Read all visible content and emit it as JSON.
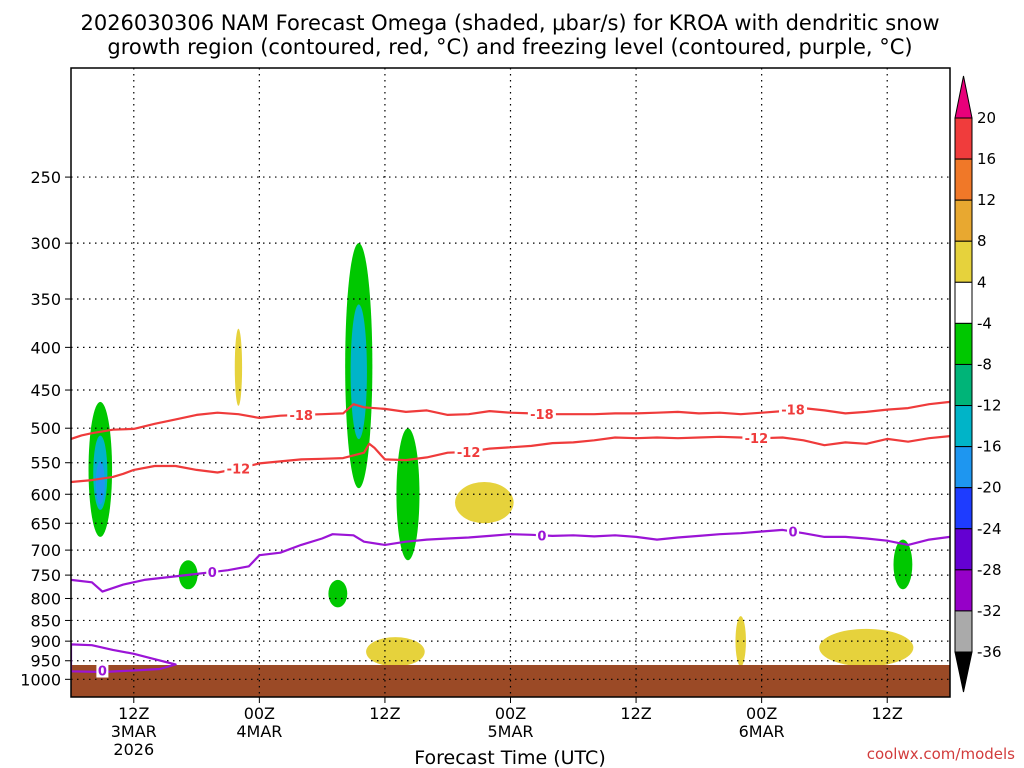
{
  "chart_data": {
    "type": "heatmap",
    "title_line1": "2026030306 NAM Forecast Omega (shaded, μbar/s) for KROA with dendritic snow",
    "title_line2": "growth region (contoured, red, °C) and freezing level (contoured, purple, °C)",
    "xlabel": "Forecast Time (UTC)",
    "ylabel": "",
    "credit": "coolwx.com/models",
    "yaxis": {
      "type": "log-pressure",
      "range_hPa": [
        1050,
        185
      ],
      "ticks": [
        "250",
        "300",
        "350",
        "400",
        "450",
        "500",
        "550",
        "600",
        "650",
        "700",
        "750",
        "800",
        "850",
        "900",
        "950",
        "1000"
      ]
    },
    "xaxis": {
      "range_hours": [
        0,
        84
      ],
      "ticks": [
        {
          "hour": 6,
          "label": "12Z",
          "sub": "3MAR",
          "sub2": "2026"
        },
        {
          "hour": 18,
          "label": "00Z",
          "sub": "4MAR",
          "sub2": ""
        },
        {
          "hour": 30,
          "label": "12Z",
          "sub": "",
          "sub2": ""
        },
        {
          "hour": 42,
          "label": "00Z",
          "sub": "5MAR",
          "sub2": ""
        },
        {
          "hour": 54,
          "label": "12Z",
          "sub": "",
          "sub2": ""
        },
        {
          "hour": 66,
          "label": "00Z",
          "sub": "6MAR",
          "sub2": ""
        },
        {
          "hour": 78,
          "label": "12Z",
          "sub": "",
          "sub2": ""
        }
      ]
    },
    "colorbar": {
      "levels": [
        "20",
        "16",
        "12",
        "8",
        "4",
        "-4",
        "-8",
        "-12",
        "-16",
        "-20",
        "-24",
        "-28",
        "-32",
        "-36"
      ],
      "colors": [
        "#e8007a",
        "#f03c3c",
        "#f07828",
        "#e8a830",
        "#e6d23c",
        "#ffffff",
        "#00c800",
        "#00b478",
        "#00b4c8",
        "#1e96f0",
        "#1e3cff",
        "#6400d2",
        "#9600c8",
        "#aaaaaa",
        "#000000"
      ]
    },
    "contours": [
      {
        "name": "-18°C isotherm",
        "color": "#ef3b3b",
        "label": "-18",
        "points": [
          [
            0,
            515
          ],
          [
            1,
            510
          ],
          [
            2,
            507
          ],
          [
            4,
            502
          ],
          [
            6,
            501
          ],
          [
            8,
            494
          ],
          [
            10,
            488
          ],
          [
            12,
            482
          ],
          [
            14,
            479
          ],
          [
            16,
            481
          ],
          [
            18,
            486
          ],
          [
            20,
            483
          ],
          [
            22,
            482
          ],
          [
            24,
            481
          ],
          [
            26,
            480
          ],
          [
            27,
            468
          ],
          [
            28,
            472
          ],
          [
            30,
            474
          ],
          [
            32,
            478
          ],
          [
            34,
            476
          ],
          [
            36,
            482
          ],
          [
            38,
            481
          ],
          [
            40,
            477
          ],
          [
            42,
            479
          ],
          [
            44,
            480
          ],
          [
            46,
            481
          ],
          [
            48,
            481
          ],
          [
            50,
            481
          ],
          [
            52,
            480
          ],
          [
            54,
            480
          ],
          [
            56,
            479
          ],
          [
            58,
            478
          ],
          [
            60,
            480
          ],
          [
            62,
            479
          ],
          [
            64,
            481
          ],
          [
            66,
            479
          ],
          [
            68,
            477
          ],
          [
            70,
            473
          ],
          [
            72,
            476
          ],
          [
            74,
            480
          ],
          [
            76,
            478
          ],
          [
            78,
            475
          ],
          [
            80,
            473
          ],
          [
            82,
            468
          ],
          [
            84,
            465
          ]
        ],
        "label_hours": [
          22,
          45,
          69
        ]
      },
      {
        "name": "-12°C isotherm",
        "color": "#ef3b3b",
        "label": "-12",
        "points": [
          [
            0,
            580
          ],
          [
            2,
            577
          ],
          [
            4,
            572
          ],
          [
            5,
            567
          ],
          [
            6,
            561
          ],
          [
            8,
            555
          ],
          [
            10,
            555
          ],
          [
            12,
            561
          ],
          [
            14,
            565
          ],
          [
            16,
            559
          ],
          [
            18,
            551
          ],
          [
            20,
            548
          ],
          [
            22,
            545
          ],
          [
            24,
            544
          ],
          [
            26,
            543
          ],
          [
            28,
            535
          ],
          [
            28.5,
            522
          ],
          [
            29,
            528
          ],
          [
            30,
            545
          ],
          [
            32,
            546
          ],
          [
            34,
            542
          ],
          [
            36,
            535
          ],
          [
            38,
            534
          ],
          [
            40,
            529
          ],
          [
            42,
            527
          ],
          [
            44,
            525
          ],
          [
            46,
            521
          ],
          [
            48,
            520
          ],
          [
            50,
            517
          ],
          [
            52,
            513
          ],
          [
            54,
            514
          ],
          [
            56,
            513
          ],
          [
            58,
            514
          ],
          [
            60,
            513
          ],
          [
            62,
            512
          ],
          [
            64,
            513
          ],
          [
            66,
            514
          ],
          [
            68,
            513
          ],
          [
            70,
            517
          ],
          [
            72,
            524
          ],
          [
            74,
            520
          ],
          [
            76,
            522
          ],
          [
            78,
            515
          ],
          [
            80,
            519
          ],
          [
            82,
            514
          ],
          [
            84,
            511
          ]
        ],
        "label_hours": [
          16,
          38,
          65.5
        ]
      },
      {
        "name": "0°C freezing level",
        "color": "#9b14d6",
        "label": "0",
        "points": [
          [
            0,
            760
          ],
          [
            2,
            765
          ],
          [
            3,
            785
          ],
          [
            5,
            770
          ],
          [
            7,
            760
          ],
          [
            9,
            755
          ],
          [
            11,
            750
          ],
          [
            13,
            745
          ],
          [
            15,
            740
          ],
          [
            17,
            732
          ],
          [
            18,
            710
          ],
          [
            20,
            705
          ],
          [
            22,
            690
          ],
          [
            24,
            678
          ],
          [
            25,
            670
          ],
          [
            27,
            672
          ],
          [
            28,
            684
          ],
          [
            30,
            690
          ],
          [
            32,
            684
          ],
          [
            34,
            680
          ],
          [
            36,
            678
          ],
          [
            38,
            676
          ],
          [
            40,
            673
          ],
          [
            42,
            670
          ],
          [
            44,
            671
          ],
          [
            46,
            673
          ],
          [
            48,
            672
          ],
          [
            50,
            674
          ],
          [
            52,
            672
          ],
          [
            54,
            675
          ],
          [
            56,
            680
          ],
          [
            58,
            676
          ],
          [
            60,
            673
          ],
          [
            62,
            670
          ],
          [
            64,
            668
          ],
          [
            66,
            665
          ],
          [
            68,
            662
          ],
          [
            70,
            668
          ],
          [
            72,
            675
          ],
          [
            74,
            675
          ],
          [
            76,
            678
          ],
          [
            78,
            682
          ],
          [
            80,
            690
          ],
          [
            82,
            680
          ],
          [
            84,
            675
          ]
        ],
        "label_hours": [
          13.5,
          45,
          69
        ]
      },
      {
        "name": "0°C near-surface loop",
        "color": "#9b14d6",
        "label": "0",
        "points": [
          [
            0,
            908
          ],
          [
            2,
            910
          ],
          [
            4,
            922
          ],
          [
            6,
            932
          ],
          [
            8,
            946
          ],
          [
            10,
            960
          ],
          [
            8.5,
            972
          ],
          [
            6,
            976
          ],
          [
            3,
            980
          ],
          [
            0,
            978
          ]
        ],
        "label_hours": [
          3
        ]
      }
    ],
    "shaded_regions": [
      {
        "time_hours": 2.8,
        "pressure_top_hPa": 465,
        "pressure_bottom_hPa": 675,
        "omega_min": -16,
        "category": "ascent"
      },
      {
        "time_hours": 27.5,
        "pressure_top_hPa": 300,
        "pressure_bottom_hPa": 590,
        "omega_min": -12,
        "category": "ascent"
      },
      {
        "time_hours": 32.2,
        "pressure_top_hPa": 500,
        "pressure_bottom_hPa": 720,
        "omega_min": -8,
        "category": "ascent"
      },
      {
        "time_hours": 11.2,
        "pressure_top_hPa": 720,
        "pressure_bottom_hPa": 780,
        "omega_min": -8,
        "category": "ascent"
      },
      {
        "time_hours": 25.5,
        "pressure_top_hPa": 760,
        "pressure_bottom_hPa": 820,
        "omega_min": -8,
        "category": "ascent"
      },
      {
        "time_hours": 79.5,
        "pressure_top_hPa": 680,
        "pressure_bottom_hPa": 780,
        "omega_min": -8,
        "category": "ascent"
      },
      {
        "time_hours": 16,
        "pressure_top_hPa": 380,
        "pressure_bottom_hPa": 470,
        "omega_max": 8,
        "category": "descent"
      },
      {
        "time_hours": 39.5,
        "pressure_top_hPa": 580,
        "pressure_bottom_hPa": 650,
        "omega_max": 8,
        "category": "descent"
      },
      {
        "time_hours": 31,
        "pressure_top_hPa": 890,
        "pressure_bottom_hPa": 965,
        "omega_max": 8,
        "category": "descent"
      },
      {
        "time_hours": 64,
        "pressure_top_hPa": 840,
        "pressure_bottom_hPa": 965,
        "omega_max": 8,
        "category": "descent"
      },
      {
        "time_hours": 76,
        "pressure_top_hPa": 870,
        "pressure_bottom_hPa": 965,
        "omega_max": 8,
        "category": "descent"
      }
    ]
  }
}
